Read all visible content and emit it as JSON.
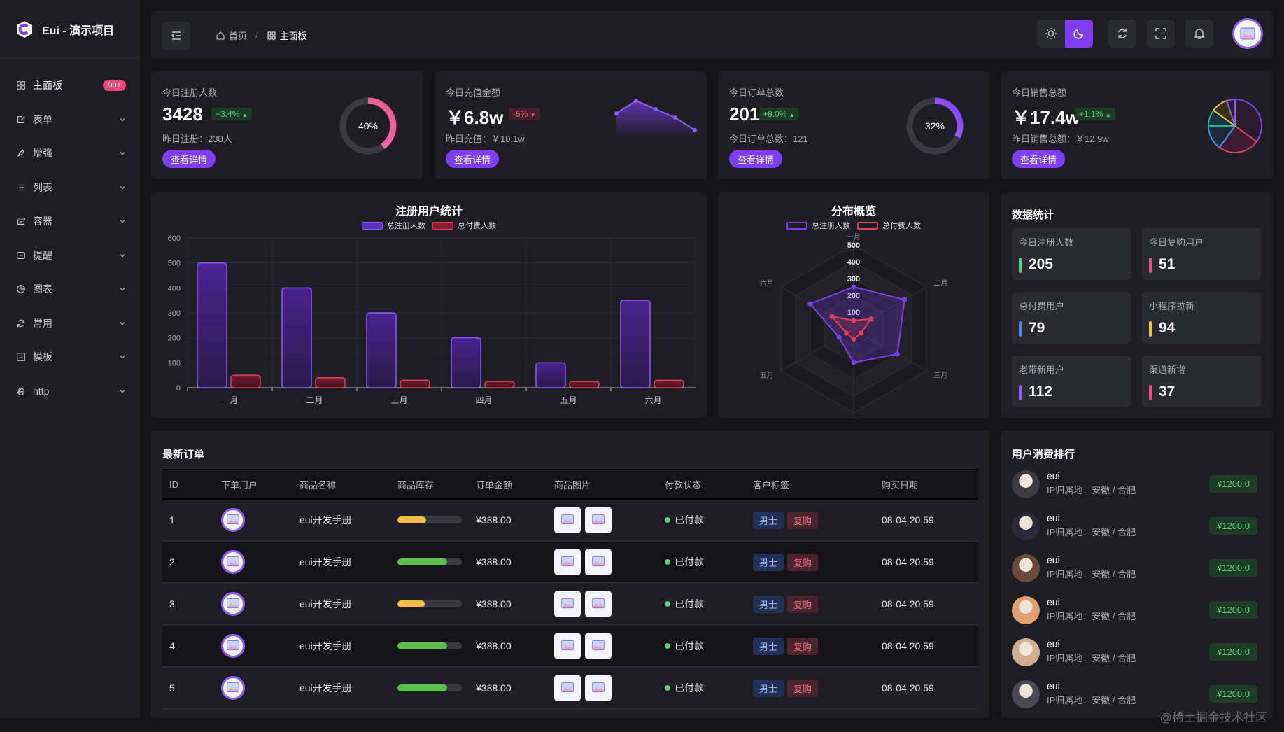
{
  "app": {
    "title": "Eui - 演示项目"
  },
  "sidebar": {
    "items": [
      {
        "label": "主面板",
        "icon": "dashboard-icon",
        "badge": "99+",
        "active": true
      },
      {
        "label": "表单",
        "icon": "form-icon"
      },
      {
        "label": "增强",
        "icon": "rocket-icon"
      },
      {
        "label": "列表",
        "icon": "list-icon"
      },
      {
        "label": "容器",
        "icon": "archive-icon"
      },
      {
        "label": "提醒",
        "icon": "message-icon"
      },
      {
        "label": "图表",
        "icon": "pie-chart-icon"
      },
      {
        "label": "常用",
        "icon": "refresh-icon"
      },
      {
        "label": "模板",
        "icon": "template-icon"
      },
      {
        "label": "http",
        "icon": "ie-icon"
      }
    ]
  },
  "breadcrumb": {
    "home": "首页",
    "current": "主面板"
  },
  "stats": [
    {
      "title": "今日注册人数",
      "value": "3428",
      "change": "+3.4%",
      "dir": "up",
      "sub": "昨日注册：230人",
      "button": "查看详情",
      "percent": "40%",
      "pv": 0.4
    },
    {
      "title": "今日充值金额",
      "value": "￥6.8w",
      "change": "-5%",
      "dir": "down",
      "sub": "昨日充值：￥10.1w",
      "button": "查看详情"
    },
    {
      "title": "今日订单总数",
      "value": "201",
      "change": "+8.0%",
      "dir": "up",
      "sub": "今日订单总数：121",
      "button": "查看详情",
      "percent": "32%",
      "pv": 0.32
    },
    {
      "title": "今日销售总额",
      "value": "￥17.4w",
      "change": "+1.1%",
      "dir": "up",
      "sub": "昨日销售总额：￥12.9w",
      "button": "查看详情"
    }
  ],
  "bar_chart": {
    "title": "注册用户统计",
    "legend": [
      "总注册人数",
      "总付费人数"
    ]
  },
  "radar_chart": {
    "title": "分布概览",
    "legend": [
      "总注册人数",
      "总付费人数"
    ],
    "indicators": [
      "一月",
      "二月",
      "三月",
      "四月",
      "五月",
      "六月"
    ],
    "ticks": [
      "500",
      "400",
      "300",
      "200",
      "100"
    ]
  },
  "chart_data": [
    {
      "type": "bar",
      "title": "注册用户统计",
      "categories": [
        "一月",
        "二月",
        "三月",
        "四月",
        "五月",
        "六月"
      ],
      "ylim": [
        0,
        600
      ],
      "yticks": [
        0,
        100,
        200,
        300,
        400,
        500,
        600
      ],
      "series": [
        {
          "name": "总注册人数",
          "values": [
            500,
            400,
            300,
            200,
            100,
            350
          ]
        },
        {
          "name": "总付费人数",
          "values": [
            50,
            40,
            30,
            25,
            25,
            30
          ]
        }
      ]
    },
    {
      "type": "radar",
      "title": "分布概览",
      "indicators": [
        "一月",
        "二月",
        "三月",
        "四月",
        "五月",
        "六月"
      ],
      "max": 500,
      "series": [
        {
          "name": "总注册人数",
          "values": [
            250,
            350,
            300,
            200,
            100,
            300
          ]
        },
        {
          "name": "总付费人数",
          "values": [
            50,
            120,
            50,
            60,
            50,
            150
          ]
        }
      ]
    },
    {
      "type": "area",
      "values": [
        3,
        4.5,
        3.5,
        2.5,
        1
      ]
    },
    {
      "type": "pie",
      "values": [
        35,
        25,
        15,
        10,
        10,
        5
      ]
    }
  ],
  "data_stats": {
    "title": "数据统计",
    "items": [
      {
        "label": "今日注册人数",
        "value": "205",
        "color": "#59d07a"
      },
      {
        "label": "今日复购用户",
        "value": "51",
        "color": "#f0508a"
      },
      {
        "label": "总付费用户",
        "value": "79",
        "color": "#4a8af0"
      },
      {
        "label": "小程序拉新",
        "value": "94",
        "color": "#f0c040"
      },
      {
        "label": "老带新用户",
        "value": "112",
        "color": "#8b5cf6"
      },
      {
        "label": "渠道新增",
        "value": "37",
        "color": "#f0508a"
      }
    ]
  },
  "orders": {
    "title": "最新订单",
    "columns": [
      "ID",
      "下单用户",
      "商品名称",
      "商品库存",
      "订单金额",
      "商品图片",
      "付款状态",
      "客户标签",
      "购买日期"
    ],
    "rows": [
      {
        "id": "1",
        "name": "eui开发手册",
        "stock": 0.45,
        "stockColor": "#f0c040",
        "amount": "¥388.00",
        "status": "已付款",
        "tags": [
          "男士",
          "复购"
        ],
        "date": "08-04 20:59"
      },
      {
        "id": "2",
        "name": "eui开发手册",
        "stock": 0.77,
        "stockColor": "#59c04a",
        "amount": "¥388.00",
        "status": "已付款",
        "tags": [
          "男士",
          "复购"
        ],
        "date": "08-04 20:59"
      },
      {
        "id": "3",
        "name": "eui开发手册",
        "stock": 0.42,
        "stockColor": "#f0c040",
        "amount": "¥388.00",
        "status": "已付款",
        "tags": [
          "男士",
          "复购"
        ],
        "date": "08-04 20:59"
      },
      {
        "id": "4",
        "name": "eui开发手册",
        "stock": 0.77,
        "stockColor": "#59c04a",
        "amount": "¥388.00",
        "status": "已付款",
        "tags": [
          "男士",
          "复购"
        ],
        "date": "08-04 20:59"
      },
      {
        "id": "5",
        "name": "eui开发手册",
        "stock": 0.77,
        "stockColor": "#59c04a",
        "amount": "¥388.00",
        "status": "已付款",
        "tags": [
          "男士",
          "复购"
        ],
        "date": "08-04 20:59"
      }
    ]
  },
  "ranking": {
    "title": "用户消费排行",
    "items": [
      {
        "name": "eui",
        "location": "IP归属地：安徽 / 合肥",
        "amount": "¥1200.0"
      },
      {
        "name": "eui",
        "location": "IP归属地：安徽 / 合肥",
        "amount": "¥1200.0"
      },
      {
        "name": "eui",
        "location": "IP归属地：安徽 / 合肥",
        "amount": "¥1200.0"
      },
      {
        "name": "eui",
        "location": "IP归属地：安徽 / 合肥",
        "amount": "¥1200.0"
      },
      {
        "name": "eui",
        "location": "IP归属地：安徽 / 合肥",
        "amount": "¥1200.0"
      },
      {
        "name": "eui",
        "location": "IP归属地：安徽 / 合肥",
        "amount": "¥1200.0"
      }
    ]
  },
  "watermark": "@稀土掘金技术社区",
  "colors": {
    "accent": "#7e3ff2",
    "bg": "#141418",
    "panel": "#1d1d23"
  }
}
